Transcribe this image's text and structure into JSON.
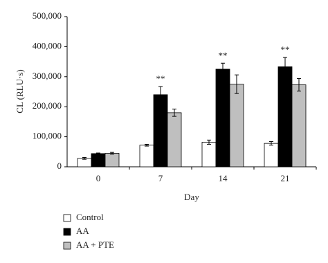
{
  "chart_data": {
    "type": "bar",
    "y_label": "CL (RLU·s)",
    "x_label": "Day",
    "categories": [
      "0",
      "7",
      "14",
      "21"
    ],
    "series": [
      {
        "name": "Control",
        "color": "#ffffff",
        "values": [
          28000,
          72000,
          82000,
          78000
        ],
        "errors": [
          3000,
          3000,
          7000,
          6000
        ]
      },
      {
        "name": "AA",
        "color": "#000000",
        "values": [
          44000,
          240000,
          325000,
          333000
        ],
        "errors": [
          2000,
          27000,
          20000,
          31000
        ]
      },
      {
        "name": "AA + PTE",
        "color": "#bfbfbf",
        "values": [
          45000,
          180000,
          275000,
          273000
        ],
        "errors": [
          3000,
          12000,
          31000,
          21000
        ]
      }
    ],
    "annotations": [
      {
        "category": "7",
        "text": "**"
      },
      {
        "category": "14",
        "text": "**"
      },
      {
        "category": "21",
        "text": "**"
      }
    ],
    "ylim": [
      0,
      500000
    ],
    "yticks": [
      0,
      {
        "value": 100000,
        "label": "100,000"
      },
      {
        "value": 200000,
        "label": "200,000"
      },
      {
        "value": 300000,
        "label": "300,000"
      },
      {
        "value": 400000,
        "label": "400,000"
      },
      {
        "value": 500000,
        "label": "500,000"
      }
    ],
    "legend": "bottom-left"
  }
}
